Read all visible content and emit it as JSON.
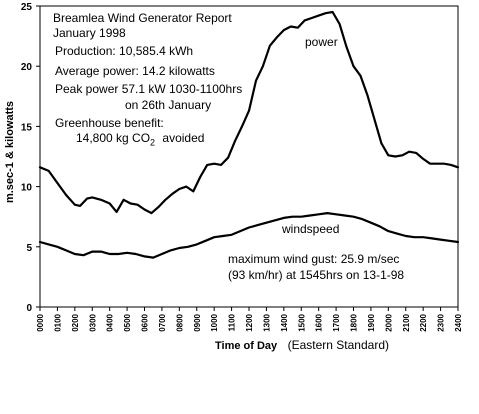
{
  "report": {
    "title": "Breamlea Wind Generator Report",
    "period": "January 1998",
    "production": "Production: 10,585.4 kWh",
    "average_power": "Average power: 14.2 kilowatts",
    "peak_power": "Peak power 57.1 kW 1030-1100hrs",
    "peak_date": "on 26th January",
    "greenhouse_label": "Greenhouse benefit:",
    "greenhouse_value_prefix": "14,800 kg CO",
    "greenhouse_value_sub": "2",
    "greenhouse_value_suffix": "avoided",
    "gust_line1": "maximum wind gust: 25.9 m/sec",
    "gust_line2": "(93 km/hr) at 1545hrs on 13-1-98"
  },
  "chart_data": {
    "type": "line",
    "title": "",
    "xlabel": "Time of Day",
    "xlabel_note": "(Eastern Standard)",
    "ylabel": "m.sec-1 & kilowatts",
    "ylim": [
      0,
      25
    ],
    "yticks": [
      0,
      5,
      10,
      15,
      20,
      25
    ],
    "xlim": [
      0,
      24
    ],
    "xtick_labels": [
      "0000",
      "0100",
      "0200",
      "0300",
      "0400",
      "0500",
      "0600",
      "0700",
      "0800",
      "0900",
      "1000",
      "1100",
      "1200",
      "1300",
      "1400",
      "1500",
      "1600",
      "1700",
      "1800",
      "1900",
      "2000",
      "2100",
      "2200",
      "2300",
      "2400"
    ],
    "grid": false,
    "legend": "none",
    "series": [
      {
        "name": "power",
        "color": "#000000",
        "points": [
          [
            0,
            11.6
          ],
          [
            0.5,
            11.3
          ],
          [
            1,
            10.3
          ],
          [
            1.5,
            9.3
          ],
          [
            2,
            8.5
          ],
          [
            2.3,
            8.4
          ],
          [
            2.7,
            9.0
          ],
          [
            3,
            9.1
          ],
          [
            3.5,
            8.9
          ],
          [
            4,
            8.6
          ],
          [
            4.4,
            7.9
          ],
          [
            4.8,
            8.9
          ],
          [
            5.2,
            8.6
          ],
          [
            5.6,
            8.5
          ],
          [
            6,
            8.1
          ],
          [
            6.4,
            7.8
          ],
          [
            6.8,
            8.3
          ],
          [
            7.2,
            8.9
          ],
          [
            7.6,
            9.4
          ],
          [
            8,
            9.8
          ],
          [
            8.4,
            10.0
          ],
          [
            8.8,
            9.6
          ],
          [
            9.2,
            10.8
          ],
          [
            9.6,
            11.8
          ],
          [
            10,
            11.9
          ],
          [
            10.4,
            11.8
          ],
          [
            10.8,
            12.4
          ],
          [
            11.2,
            13.8
          ],
          [
            11.6,
            15.0
          ],
          [
            12,
            16.3
          ],
          [
            12.4,
            18.8
          ],
          [
            12.8,
            20.0
          ],
          [
            13.2,
            21.7
          ],
          [
            13.6,
            22.4
          ],
          [
            14,
            23.0
          ],
          [
            14.4,
            23.3
          ],
          [
            14.8,
            23.2
          ],
          [
            15.2,
            23.8
          ],
          [
            15.6,
            24.0
          ],
          [
            16,
            24.2
          ],
          [
            16.4,
            24.4
          ],
          [
            16.8,
            24.5
          ],
          [
            17.2,
            23.5
          ],
          [
            17.6,
            21.6
          ],
          [
            18,
            20.0
          ],
          [
            18.4,
            19.2
          ],
          [
            18.8,
            17.6
          ],
          [
            19.2,
            15.6
          ],
          [
            19.6,
            13.6
          ],
          [
            20,
            12.6
          ],
          [
            20.4,
            12.5
          ],
          [
            20.8,
            12.6
          ],
          [
            21.2,
            12.9
          ],
          [
            21.6,
            12.8
          ],
          [
            22,
            12.3
          ],
          [
            22.4,
            11.9
          ],
          [
            22.8,
            11.9
          ],
          [
            23.2,
            11.9
          ],
          [
            23.6,
            11.8
          ],
          [
            24,
            11.6
          ]
        ]
      },
      {
        "name": "windspeed",
        "color": "#000000",
        "points": [
          [
            0,
            5.4
          ],
          [
            0.5,
            5.2
          ],
          [
            1,
            5.0
          ],
          [
            1.5,
            4.7
          ],
          [
            2,
            4.4
          ],
          [
            2.5,
            4.3
          ],
          [
            3,
            4.6
          ],
          [
            3.5,
            4.6
          ],
          [
            4,
            4.4
          ],
          [
            4.5,
            4.4
          ],
          [
            5,
            4.5
          ],
          [
            5.5,
            4.4
          ],
          [
            6,
            4.2
          ],
          [
            6.5,
            4.1
          ],
          [
            7,
            4.4
          ],
          [
            7.5,
            4.7
          ],
          [
            8,
            4.9
          ],
          [
            8.5,
            5.0
          ],
          [
            9,
            5.2
          ],
          [
            9.5,
            5.5
          ],
          [
            10,
            5.8
          ],
          [
            10.5,
            5.9
          ],
          [
            11,
            6.0
          ],
          [
            11.5,
            6.3
          ],
          [
            12,
            6.6
          ],
          [
            12.5,
            6.8
          ],
          [
            13,
            7.0
          ],
          [
            13.5,
            7.2
          ],
          [
            14,
            7.4
          ],
          [
            14.5,
            7.5
          ],
          [
            15,
            7.5
          ],
          [
            15.5,
            7.6
          ],
          [
            16,
            7.7
          ],
          [
            16.5,
            7.8
          ],
          [
            17,
            7.7
          ],
          [
            17.5,
            7.6
          ],
          [
            18,
            7.5
          ],
          [
            18.5,
            7.3
          ],
          [
            19,
            7.0
          ],
          [
            19.5,
            6.7
          ],
          [
            20,
            6.3
          ],
          [
            20.5,
            6.1
          ],
          [
            21,
            5.9
          ],
          [
            21.5,
            5.8
          ],
          [
            22,
            5.8
          ],
          [
            22.5,
            5.7
          ],
          [
            23,
            5.6
          ],
          [
            23.5,
            5.5
          ],
          [
            24,
            5.4
          ]
        ]
      }
    ]
  }
}
